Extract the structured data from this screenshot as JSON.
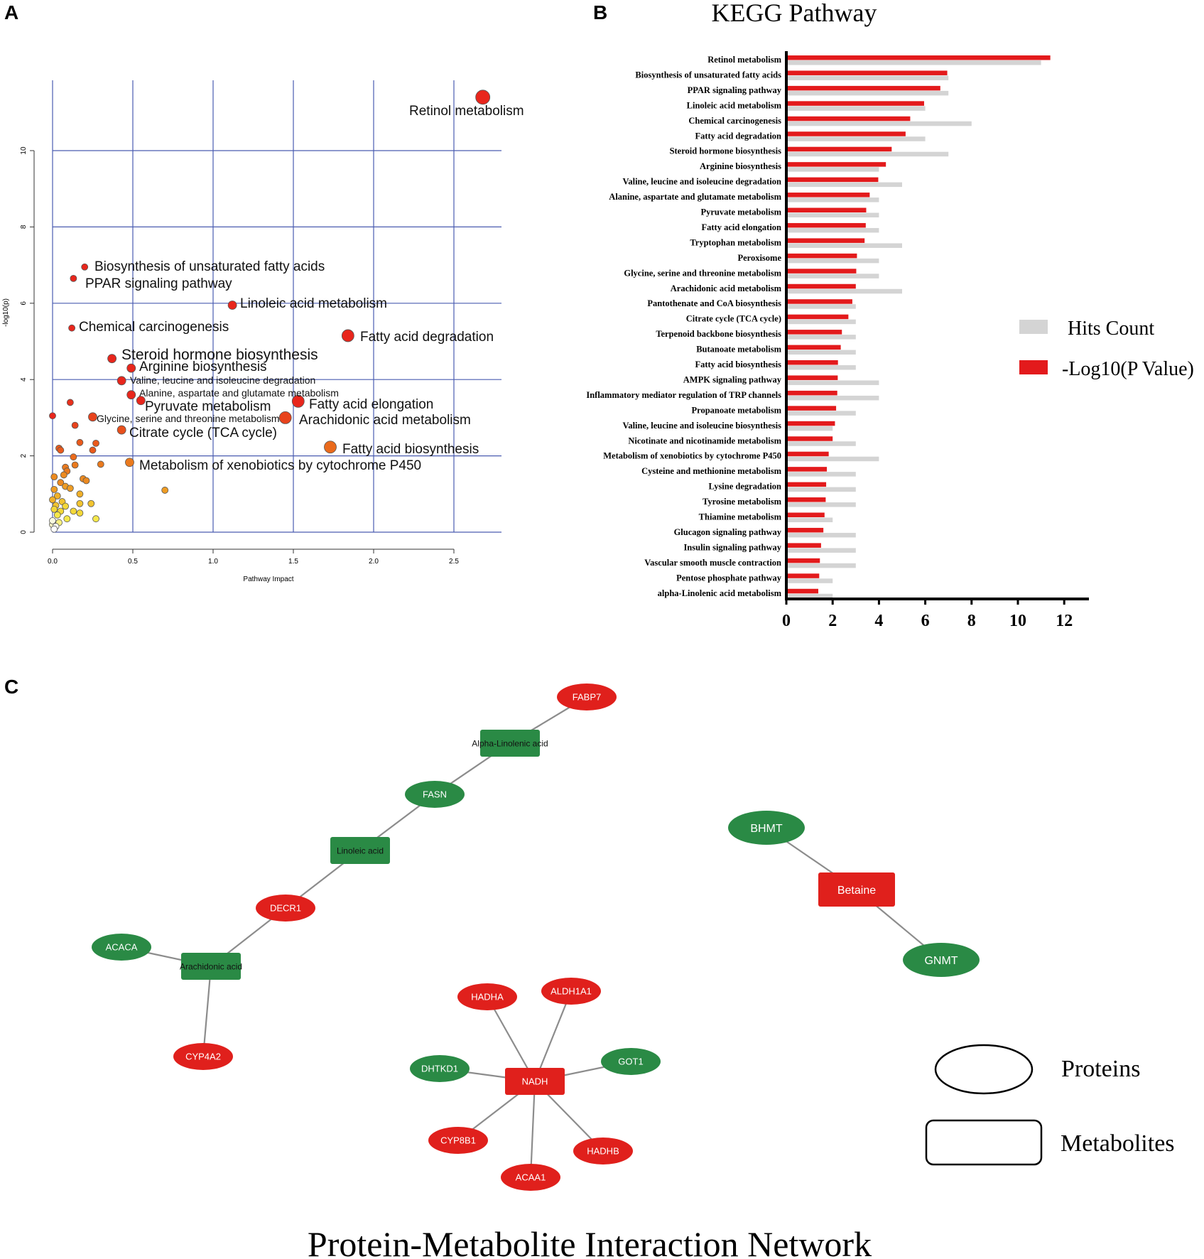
{
  "panels": {
    "a": "A",
    "b": "B",
    "c": "C"
  },
  "chart_data": [
    {
      "type": "scatter",
      "xlabel": "Pathway Impact",
      "ylabel": "-log10(p)",
      "xlim": [
        0,
        2.8
      ],
      "ylim": [
        0,
        11.5
      ],
      "xticks": [
        "0.0",
        "0.5",
        "1.0",
        "1.5",
        "2.0",
        "2.5"
      ],
      "yticks": [
        "0",
        "2",
        "4",
        "6",
        "8",
        "10"
      ],
      "grid": true,
      "labeled_points": [
        {
          "label": "Retinol metabolism",
          "x": 2.68,
          "y": 11.4,
          "color": "#e8261c",
          "size": "xl"
        },
        {
          "label": "Biosynthesis of unsaturated fatty acids",
          "x": 0.2,
          "y": 6.95,
          "color": "#e8261c",
          "size": "s"
        },
        {
          "label": "PPAR signaling pathway",
          "x": 0.13,
          "y": 6.65,
          "color": "#e8261c",
          "size": "s"
        },
        {
          "label": "Linoleic acid metabolism",
          "x": 1.12,
          "y": 5.95,
          "color": "#e8261c",
          "size": "m"
        },
        {
          "label": "Chemical carcinogenesis",
          "x": 0.12,
          "y": 5.35,
          "color": "#e8261c",
          "size": "s"
        },
        {
          "label": "Fatty acid degradation",
          "x": 1.84,
          "y": 5.15,
          "color": "#e8261c",
          "size": "l"
        },
        {
          "label": "Steroid hormone biosynthesis",
          "x": 0.37,
          "y": 4.55,
          "color": "#e8261c",
          "size": "m"
        },
        {
          "label": "Arginine biosynthesis",
          "x": 0.49,
          "y": 4.3,
          "color": "#e8261c",
          "size": "m"
        },
        {
          "label": "Valine, leucine and isoleucine degradation",
          "x": 0.43,
          "y": 3.97,
          "color": "#e8261c",
          "size": "m"
        },
        {
          "label": "Alanine, aspartate and glutamate metabolism",
          "x": 0.49,
          "y": 3.6,
          "color": "#e8261c",
          "size": "m"
        },
        {
          "label": "Pyruvate metabolism",
          "x": 0.55,
          "y": 3.45,
          "color": "#e8261c",
          "size": "m"
        },
        {
          "label": "Fatty acid elongation",
          "x": 1.53,
          "y": 3.43,
          "color": "#e8261c",
          "size": "l"
        },
        {
          "label": "Glycine, serine and threonine metabolism",
          "x": 0.25,
          "y": 3.02,
          "color": "#e8431c",
          "size": "m"
        },
        {
          "label": "Arachidonic acid metabolism",
          "x": 1.45,
          "y": 3.0,
          "color": "#e8431c",
          "size": "l"
        },
        {
          "label": "Citrate cycle (TCA cycle)",
          "x": 0.43,
          "y": 2.68,
          "color": "#e8501c",
          "size": "m"
        },
        {
          "label": "Fatty acid biosynthesis",
          "x": 1.73,
          "y": 2.23,
          "color": "#ea6a1c",
          "size": "l"
        },
        {
          "label": "Metabolism of xenobiotics by cytochrome P450",
          "x": 0.48,
          "y": 1.83,
          "color": "#ea7a1e",
          "size": "m"
        }
      ],
      "other_points": [
        {
          "x": 0.0,
          "y": 3.05,
          "color": "#e8261c"
        },
        {
          "x": 0.11,
          "y": 3.4,
          "color": "#e8301c"
        },
        {
          "x": 0.14,
          "y": 2.8,
          "color": "#e8431c"
        },
        {
          "x": 0.04,
          "y": 2.2,
          "color": "#ea5a1c"
        },
        {
          "x": 0.05,
          "y": 2.15,
          "color": "#ea5a1c"
        },
        {
          "x": 0.17,
          "y": 2.35,
          "color": "#ea5a1c"
        },
        {
          "x": 0.27,
          "y": 2.33,
          "color": "#ea5a1c"
        },
        {
          "x": 0.25,
          "y": 2.15,
          "color": "#ea5a1c"
        },
        {
          "x": 0.13,
          "y": 1.97,
          "color": "#ea6a1c"
        },
        {
          "x": 0.08,
          "y": 1.7,
          "color": "#ea7a1e"
        },
        {
          "x": 0.09,
          "y": 1.6,
          "color": "#ea7a1e"
        },
        {
          "x": 0.14,
          "y": 1.76,
          "color": "#ea7a1e"
        },
        {
          "x": 0.3,
          "y": 1.78,
          "color": "#ea7a1e"
        },
        {
          "x": 0.07,
          "y": 1.5,
          "color": "#ec8a20"
        },
        {
          "x": 0.01,
          "y": 1.45,
          "color": "#ec8a20"
        },
        {
          "x": 0.19,
          "y": 1.4,
          "color": "#ec8a20"
        },
        {
          "x": 0.21,
          "y": 1.35,
          "color": "#ec8a20"
        },
        {
          "x": 0.05,
          "y": 1.3,
          "color": "#ec8a20"
        },
        {
          "x": 0.08,
          "y": 1.2,
          "color": "#ee9c24"
        },
        {
          "x": 0.11,
          "y": 1.15,
          "color": "#ee9c24"
        },
        {
          "x": 0.01,
          "y": 1.12,
          "color": "#ee9c24"
        },
        {
          "x": 0.7,
          "y": 1.1,
          "color": "#ee9c24"
        },
        {
          "x": 0.17,
          "y": 1.0,
          "color": "#f0b02a"
        },
        {
          "x": 0.03,
          "y": 0.95,
          "color": "#f0b02a"
        },
        {
          "x": 0.0,
          "y": 0.85,
          "color": "#f0b02a"
        },
        {
          "x": 0.06,
          "y": 0.8,
          "color": "#f2c430"
        },
        {
          "x": 0.17,
          "y": 0.75,
          "color": "#f2c430"
        },
        {
          "x": 0.24,
          "y": 0.75,
          "color": "#f2c430"
        },
        {
          "x": 0.02,
          "y": 0.7,
          "color": "#f2c430"
        },
        {
          "x": 0.08,
          "y": 0.68,
          "color": "#f4d838"
        },
        {
          "x": 0.13,
          "y": 0.55,
          "color": "#f4d838"
        },
        {
          "x": 0.17,
          "y": 0.5,
          "color": "#f4d838"
        },
        {
          "x": 0.05,
          "y": 0.55,
          "color": "#f4d838"
        },
        {
          "x": 0.01,
          "y": 0.6,
          "color": "#f4d838"
        },
        {
          "x": 0.27,
          "y": 0.35,
          "color": "#f6e84a"
        },
        {
          "x": 0.09,
          "y": 0.35,
          "color": "#f6e84a"
        },
        {
          "x": 0.03,
          "y": 0.45,
          "color": "#f6e84a"
        },
        {
          "x": 0.04,
          "y": 0.25,
          "color": "#f8f080"
        },
        {
          "x": 0.0,
          "y": 0.2,
          "color": "#f8f4c0"
        },
        {
          "x": 0.02,
          "y": 0.15,
          "color": "#fafaf0"
        },
        {
          "x": 0.01,
          "y": 0.08,
          "color": "#ffffff"
        },
        {
          "x": 0.0,
          "y": 0.3,
          "color": "#fafae0"
        }
      ]
    },
    {
      "type": "bar",
      "orientation": "horizontal",
      "title": "KEGG Pathway",
      "xlim": [
        0,
        13
      ],
      "xticks": [
        "0",
        "2",
        "4",
        "6",
        "8",
        "10",
        "12"
      ],
      "legend": [
        "Hits Count",
        "-Log10(P Value)"
      ],
      "colors": {
        "hits": "#d4d4d4",
        "pvalue": "#e31a1c"
      },
      "categories": [
        "Retinol metabolism",
        "Biosynthesis of unsaturated fatty acids",
        "PPAR signaling pathway",
        "Linoleic acid metabolism",
        "Chemical carcinogenesis",
        "Fatty acid degradation",
        "Steroid hormone biosynthesis",
        "Arginine biosynthesis",
        "Valine, leucine and isoleucine degradation",
        "Alanine, aspartate and glutamate metabolism",
        "Pyruvate metabolism",
        "Fatty acid elongation",
        "Tryptophan metabolism",
        "Peroxisome",
        "Glycine, serine and threonine metabolism",
        "Arachidonic acid metabolism",
        "Pantothenate and CoA biosynthesis",
        "Citrate cycle (TCA cycle)",
        "Terpenoid backbone biosynthesis",
        "Butanoate metabolism",
        "Fatty acid biosynthesis",
        "AMPK signaling pathway",
        "Inflammatory mediator regulation of TRP channels",
        "Propanoate metabolism",
        "Valine, leucine and isoleucine biosynthesis",
        "Nicotinate and nicotinamide metabolism",
        "Metabolism of xenobiotics by cytochrome P450",
        "Cysteine and methionine metabolism",
        "Lysine degradation",
        "Tyrosine metabolism",
        "Thiamine metabolism",
        "Glucagon signaling pathway",
        "Insulin signaling pathway",
        "Vascular smooth muscle contraction",
        "Pentose phosphate pathway",
        "alpha-Linolenic acid metabolism"
      ],
      "series": [
        {
          "name": "-Log10(P Value)",
          "values": [
            11.4,
            6.95,
            6.65,
            5.95,
            5.35,
            5.15,
            4.55,
            4.3,
            3.97,
            3.6,
            3.45,
            3.43,
            3.38,
            3.05,
            3.02,
            3.0,
            2.85,
            2.68,
            2.4,
            2.35,
            2.23,
            2.22,
            2.2,
            2.15,
            2.1,
            2.0,
            1.83,
            1.75,
            1.72,
            1.7,
            1.65,
            1.6,
            1.5,
            1.45,
            1.42,
            1.38
          ]
        },
        {
          "name": "Hits Count",
          "values": [
            11,
            7,
            7,
            6,
            8,
            6,
            7,
            4,
            5,
            4,
            4,
            4,
            5,
            4,
            4,
            5,
            3,
            3,
            3,
            3,
            3,
            4,
            4,
            3,
            2,
            3,
            4,
            3,
            3,
            3,
            2,
            3,
            3,
            3,
            2,
            2
          ]
        }
      ]
    }
  ],
  "network": {
    "title": "Protein-Metabolite Interaction Network",
    "legend": {
      "proteins": "Proteins",
      "metabolites": "Metabolites"
    },
    "colors": {
      "green": "#2a8a45",
      "red": "#e0201c",
      "edge": "#8c8c8c"
    },
    "nodes": [
      {
        "id": "FABP7",
        "kind": "protein",
        "color": "red"
      },
      {
        "id": "Alpha-Linolenic acid",
        "kind": "metabolite",
        "color": "green"
      },
      {
        "id": "FASN",
        "kind": "protein",
        "color": "green"
      },
      {
        "id": "Linoleic acid",
        "kind": "metabolite",
        "color": "green"
      },
      {
        "id": "DECR1",
        "kind": "protein",
        "color": "red"
      },
      {
        "id": "ACACA",
        "kind": "protein",
        "color": "green"
      },
      {
        "id": "Arachidonic acid",
        "kind": "metabolite",
        "color": "green"
      },
      {
        "id": "CYP4A2",
        "kind": "protein",
        "color": "red"
      },
      {
        "id": "BHMT",
        "kind": "protein",
        "color": "green"
      },
      {
        "id": "Betaine",
        "kind": "metabolite",
        "color": "red"
      },
      {
        "id": "GNMT",
        "kind": "protein",
        "color": "green"
      },
      {
        "id": "HADHA",
        "kind": "protein",
        "color": "red"
      },
      {
        "id": "ALDH1A1",
        "kind": "protein",
        "color": "red"
      },
      {
        "id": "DHTKD1",
        "kind": "protein",
        "color": "green"
      },
      {
        "id": "NADH",
        "kind": "metabolite",
        "color": "red"
      },
      {
        "id": "GOT1",
        "kind": "protein",
        "color": "green"
      },
      {
        "id": "CYP8B1",
        "kind": "protein",
        "color": "red"
      },
      {
        "id": "HADHB",
        "kind": "protein",
        "color": "red"
      },
      {
        "id": "ACAA1",
        "kind": "protein",
        "color": "red"
      }
    ],
    "edges": [
      [
        "FABP7",
        "Alpha-Linolenic acid"
      ],
      [
        "Alpha-Linolenic acid",
        "FASN"
      ],
      [
        "FASN",
        "Linoleic acid"
      ],
      [
        "Linoleic acid",
        "DECR1"
      ],
      [
        "DECR1",
        "Arachidonic acid"
      ],
      [
        "ACACA",
        "Arachidonic acid"
      ],
      [
        "Arachidonic acid",
        "CYP4A2"
      ],
      [
        "BHMT",
        "Betaine"
      ],
      [
        "Betaine",
        "GNMT"
      ],
      [
        "HADHA",
        "NADH"
      ],
      [
        "ALDH1A1",
        "NADH"
      ],
      [
        "DHTKD1",
        "NADH"
      ],
      [
        "GOT1",
        "NADH"
      ],
      [
        "CYP8B1",
        "NADH"
      ],
      [
        "ACAA1",
        "NADH"
      ],
      [
        "HADHB",
        "NADH"
      ]
    ]
  }
}
